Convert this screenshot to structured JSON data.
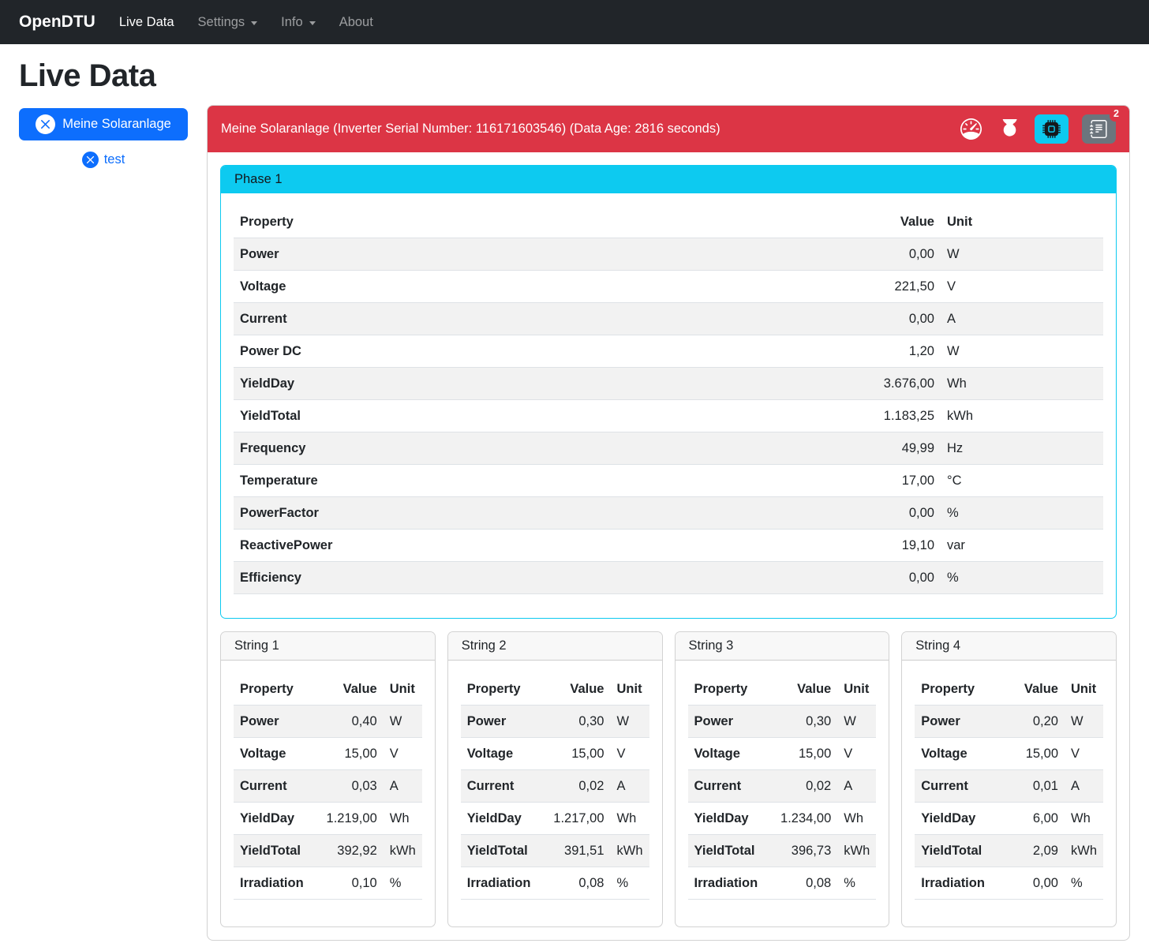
{
  "colors": {
    "navbar_bg": "#212529",
    "primary": "#0d6efd",
    "danger": "#dc3545",
    "info": "#0dcaf0",
    "secondary": "#6c757d",
    "table_stripe": "#f2f2f2",
    "table_border": "#dee2e6"
  },
  "navbar": {
    "brand": "OpenDTU",
    "items": [
      {
        "label": "Live Data",
        "active": true,
        "has_dropdown": false
      },
      {
        "label": "Settings",
        "active": false,
        "has_dropdown": true
      },
      {
        "label": "Info",
        "active": false,
        "has_dropdown": true
      },
      {
        "label": "About",
        "active": false,
        "has_dropdown": false
      }
    ]
  },
  "page_title": "Live Data",
  "sidebar": {
    "selected_inverter": {
      "label": "Meine Solaranlage",
      "icon": "x-circle-fill-icon"
    },
    "other_inverter": {
      "label": "test",
      "icon": "x-circle-fill-icon"
    }
  },
  "inverter_panel": {
    "title": "Meine Solaranlage (Inverter Serial Number: 116171603546) (Data Age: 2816 seconds)",
    "toolbar": {
      "icons": [
        "speedometer-icon",
        "power-icon",
        "cpu-icon",
        "journal-text-icon"
      ],
      "event_log_count": "2"
    }
  },
  "table_columns": {
    "property": "Property",
    "value": "Value",
    "unit": "Unit"
  },
  "phase": {
    "title": "Phase 1",
    "rows": [
      {
        "property": "Power",
        "value": "0,00",
        "unit": "W"
      },
      {
        "property": "Voltage",
        "value": "221,50",
        "unit": "V"
      },
      {
        "property": "Current",
        "value": "0,00",
        "unit": "A"
      },
      {
        "property": "Power DC",
        "value": "1,20",
        "unit": "W"
      },
      {
        "property": "YieldDay",
        "value": "3.676,00",
        "unit": "Wh"
      },
      {
        "property": "YieldTotal",
        "value": "1.183,25",
        "unit": "kWh"
      },
      {
        "property": "Frequency",
        "value": "49,99",
        "unit": "Hz"
      },
      {
        "property": "Temperature",
        "value": "17,00",
        "unit": "°C"
      },
      {
        "property": "PowerFactor",
        "value": "0,00",
        "unit": "%"
      },
      {
        "property": "ReactivePower",
        "value": "19,10",
        "unit": "var"
      },
      {
        "property": "Efficiency",
        "value": "0,00",
        "unit": "%"
      }
    ]
  },
  "strings": [
    {
      "title": "String 1",
      "rows": [
        {
          "property": "Power",
          "value": "0,40",
          "unit": "W"
        },
        {
          "property": "Voltage",
          "value": "15,00",
          "unit": "V"
        },
        {
          "property": "Current",
          "value": "0,03",
          "unit": "A"
        },
        {
          "property": "YieldDay",
          "value": "1.219,00",
          "unit": "Wh"
        },
        {
          "property": "YieldTotal",
          "value": "392,92",
          "unit": "kWh"
        },
        {
          "property": "Irradiation",
          "value": "0,10",
          "unit": "%"
        }
      ]
    },
    {
      "title": "String 2",
      "rows": [
        {
          "property": "Power",
          "value": "0,30",
          "unit": "W"
        },
        {
          "property": "Voltage",
          "value": "15,00",
          "unit": "V"
        },
        {
          "property": "Current",
          "value": "0,02",
          "unit": "A"
        },
        {
          "property": "YieldDay",
          "value": "1.217,00",
          "unit": "Wh"
        },
        {
          "property": "YieldTotal",
          "value": "391,51",
          "unit": "kWh"
        },
        {
          "property": "Irradiation",
          "value": "0,08",
          "unit": "%"
        }
      ]
    },
    {
      "title": "String 3",
      "rows": [
        {
          "property": "Power",
          "value": "0,30",
          "unit": "W"
        },
        {
          "property": "Voltage",
          "value": "15,00",
          "unit": "V"
        },
        {
          "property": "Current",
          "value": "0,02",
          "unit": "A"
        },
        {
          "property": "YieldDay",
          "value": "1.234,00",
          "unit": "Wh"
        },
        {
          "property": "YieldTotal",
          "value": "396,73",
          "unit": "kWh"
        },
        {
          "property": "Irradiation",
          "value": "0,08",
          "unit": "%"
        }
      ]
    },
    {
      "title": "String 4",
      "rows": [
        {
          "property": "Power",
          "value": "0,20",
          "unit": "W"
        },
        {
          "property": "Voltage",
          "value": "15,00",
          "unit": "V"
        },
        {
          "property": "Current",
          "value": "0,01",
          "unit": "A"
        },
        {
          "property": "YieldDay",
          "value": "6,00",
          "unit": "Wh"
        },
        {
          "property": "YieldTotal",
          "value": "2,09",
          "unit": "kWh"
        },
        {
          "property": "Irradiation",
          "value": "0,00",
          "unit": "%"
        }
      ]
    }
  ]
}
